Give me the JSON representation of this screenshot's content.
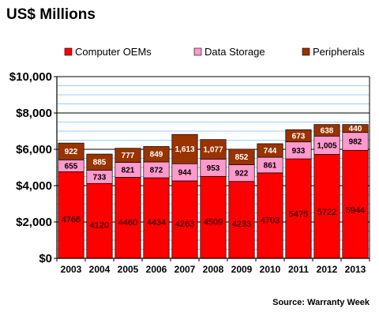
{
  "chart_data": {
    "type": "bar",
    "stacked": true,
    "title": "US$ Millions",
    "source": "Source: Warranty Week",
    "categories": [
      "2003",
      "2004",
      "2005",
      "2006",
      "2007",
      "2008",
      "2009",
      "2010",
      "2011",
      "2012",
      "2013"
    ],
    "series": [
      {
        "name": "Computer OEMs",
        "color": "#ff0000",
        "values": [
          4766,
          4120,
          4460,
          4434,
          4263,
          4509,
          4233,
          4703,
          5475,
          5722,
          5944
        ],
        "labels": [
          "4766",
          "4120",
          "4460",
          "4434",
          "4263",
          "4509",
          "4233",
          "4703",
          "5475",
          "5722",
          "5944"
        ]
      },
      {
        "name": "Data Storage",
        "color": "#ff99cc",
        "values": [
          655,
          733,
          821,
          872,
          944,
          953,
          922,
          861,
          933,
          1005,
          982
        ],
        "labels": [
          "655",
          "733",
          "821",
          "872",
          "944",
          "953",
          "922",
          "861",
          "933",
          "1,005",
          "982"
        ]
      },
      {
        "name": "Peripherals",
        "color": "#993300",
        "values": [
          922,
          885,
          777,
          849,
          1613,
          1077,
          852,
          744,
          673,
          638,
          440
        ],
        "labels": [
          "922",
          "885",
          "777",
          "849",
          "1,613",
          "1,077",
          "852",
          "744",
          "673",
          "638",
          "440"
        ]
      }
    ],
    "ylim": [
      0,
      10000
    ],
    "yticks": [
      0,
      2000,
      4000,
      6000,
      8000,
      10000
    ],
    "ytick_labels": [
      "$0",
      "$2,000",
      "$4,000",
      "$6,000",
      "$8,000",
      "$10,000"
    ],
    "grid": true,
    "grid_color": "#99ccff",
    "plot_background": "#ffffff",
    "legend_position": "top"
  }
}
